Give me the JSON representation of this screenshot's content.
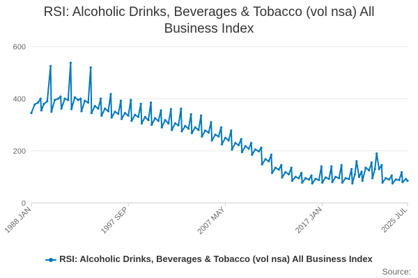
{
  "chart_data": {
    "type": "line",
    "title_lines": [
      "RSI: Alcoholic Drinks, Beverages & Tobacco (vol nsa) All",
      "Business Index"
    ],
    "xlabel": "",
    "ylabel": "",
    "ylim": [
      0,
      600
    ],
    "yticks": [
      0,
      200,
      400,
      600
    ],
    "xlim": [
      "1988-01",
      "2025-07"
    ],
    "xtick_labels": [
      {
        "date": "1988-01",
        "label": "1988 JAN"
      },
      {
        "date": "1997-09",
        "label": "1997 SEP"
      },
      {
        "date": "2007-05",
        "label": "2007 MAY"
      },
      {
        "date": "2017-01",
        "label": "2017 JAN"
      },
      {
        "date": "2025-07",
        "label": "2025 JUL"
      }
    ],
    "grid": "horizontal",
    "legend_position": "bottom",
    "color": "#0077bb",
    "series": [
      {
        "name": "RSI: Alcoholic Drinks, Beverages & Tobacco (vol nsa) All Business Index",
        "points": [
          [
            "1988-01",
            345
          ],
          [
            "1988-05",
            378
          ],
          [
            "1988-09",
            385
          ],
          [
            "1988-12",
            400
          ],
          [
            "1989-01",
            355
          ],
          [
            "1989-04",
            380
          ],
          [
            "1989-08",
            390
          ],
          [
            "1989-12",
            525
          ],
          [
            "1990-01",
            350
          ],
          [
            "1990-05",
            395
          ],
          [
            "1990-09",
            400
          ],
          [
            "1990-12",
            408
          ],
          [
            "1991-01",
            362
          ],
          [
            "1991-05",
            400
          ],
          [
            "1991-09",
            395
          ],
          [
            "1991-12",
            538
          ],
          [
            "1992-01",
            360
          ],
          [
            "1992-05",
            405
          ],
          [
            "1992-09",
            395
          ],
          [
            "1992-12",
            400
          ],
          [
            "1993-01",
            352
          ],
          [
            "1993-05",
            392
          ],
          [
            "1993-09",
            385
          ],
          [
            "1993-12",
            520
          ],
          [
            "1994-01",
            345
          ],
          [
            "1994-05",
            372
          ],
          [
            "1994-09",
            362
          ],
          [
            "1994-12",
            400
          ],
          [
            "1995-01",
            335
          ],
          [
            "1995-05",
            362
          ],
          [
            "1995-09",
            352
          ],
          [
            "1995-12",
            418
          ],
          [
            "1996-01",
            328
          ],
          [
            "1996-05",
            350
          ],
          [
            "1996-09",
            342
          ],
          [
            "1996-12",
            392
          ],
          [
            "1997-01",
            322
          ],
          [
            "1997-05",
            345
          ],
          [
            "1997-09",
            335
          ],
          [
            "1997-12",
            395
          ],
          [
            "1998-01",
            315
          ],
          [
            "1998-05",
            338
          ],
          [
            "1998-09",
            330
          ],
          [
            "1998-12",
            380
          ],
          [
            "1999-01",
            305
          ],
          [
            "1999-05",
            330
          ],
          [
            "1999-09",
            318
          ],
          [
            "1999-12",
            385
          ],
          [
            "2000-01",
            300
          ],
          [
            "2000-05",
            325
          ],
          [
            "2000-09",
            315
          ],
          [
            "2000-12",
            355
          ],
          [
            "2001-01",
            290
          ],
          [
            "2001-05",
            318
          ],
          [
            "2001-09",
            305
          ],
          [
            "2001-12",
            360
          ],
          [
            "2002-01",
            280
          ],
          [
            "2002-05",
            305
          ],
          [
            "2002-09",
            298
          ],
          [
            "2002-12",
            362
          ],
          [
            "2003-01",
            275
          ],
          [
            "2003-05",
            295
          ],
          [
            "2003-09",
            285
          ],
          [
            "2003-12",
            340
          ],
          [
            "2004-01",
            268
          ],
          [
            "2004-05",
            290
          ],
          [
            "2004-09",
            280
          ],
          [
            "2004-12",
            335
          ],
          [
            "2005-01",
            255
          ],
          [
            "2005-05",
            278
          ],
          [
            "2005-09",
            270
          ],
          [
            "2005-12",
            310
          ],
          [
            "2006-01",
            240
          ],
          [
            "2006-05",
            262
          ],
          [
            "2006-09",
            255
          ],
          [
            "2006-12",
            290
          ],
          [
            "2007-01",
            225
          ],
          [
            "2007-05",
            250
          ],
          [
            "2007-09",
            240
          ],
          [
            "2007-12",
            278
          ],
          [
            "2008-01",
            205
          ],
          [
            "2008-05",
            230
          ],
          [
            "2008-09",
            222
          ],
          [
            "2008-12",
            245
          ],
          [
            "2009-01",
            195
          ],
          [
            "2009-05",
            218
          ],
          [
            "2009-09",
            208
          ],
          [
            "2009-12",
            230
          ],
          [
            "2010-01",
            185
          ],
          [
            "2010-05",
            205
          ],
          [
            "2010-09",
            198
          ],
          [
            "2010-12",
            212
          ],
          [
            "2011-01",
            148
          ],
          [
            "2011-05",
            168
          ],
          [
            "2011-09",
            160
          ],
          [
            "2011-12",
            185
          ],
          [
            "2012-01",
            115
          ],
          [
            "2012-05",
            135
          ],
          [
            "2012-09",
            128
          ],
          [
            "2012-12",
            145
          ],
          [
            "2013-01",
            98
          ],
          [
            "2013-05",
            118
          ],
          [
            "2013-09",
            110
          ],
          [
            "2013-12",
            135
          ],
          [
            "2014-01",
            85
          ],
          [
            "2014-05",
            100
          ],
          [
            "2014-09",
            95
          ],
          [
            "2014-12",
            115
          ],
          [
            "2015-01",
            78
          ],
          [
            "2015-05",
            95
          ],
          [
            "2015-09",
            90
          ],
          [
            "2015-12",
            105
          ],
          [
            "2016-01",
            75
          ],
          [
            "2016-05",
            92
          ],
          [
            "2016-09",
            88
          ],
          [
            "2016-12",
            140
          ],
          [
            "2017-01",
            78
          ],
          [
            "2017-05",
            98
          ],
          [
            "2017-09",
            92
          ],
          [
            "2017-12",
            140
          ],
          [
            "2018-01",
            80
          ],
          [
            "2018-05",
            100
          ],
          [
            "2018-09",
            95
          ],
          [
            "2018-12",
            145
          ],
          [
            "2019-01",
            78
          ],
          [
            "2019-05",
            95
          ],
          [
            "2019-09",
            92
          ],
          [
            "2019-12",
            130
          ],
          [
            "2020-01",
            75
          ],
          [
            "2020-04",
            110
          ],
          [
            "2020-06",
            160
          ],
          [
            "2020-09",
            100
          ],
          [
            "2020-12",
            120
          ],
          [
            "2021-01",
            85
          ],
          [
            "2021-05",
            135
          ],
          [
            "2021-09",
            125
          ],
          [
            "2021-12",
            155
          ],
          [
            "2022-01",
            95
          ],
          [
            "2022-04",
            130
          ],
          [
            "2022-06",
            190
          ],
          [
            "2022-09",
            130
          ],
          [
            "2022-12",
            145
          ],
          [
            "2023-01",
            78
          ],
          [
            "2023-05",
            95
          ],
          [
            "2023-09",
            90
          ],
          [
            "2023-12",
            105
          ],
          [
            "2024-01",
            75
          ],
          [
            "2024-05",
            90
          ],
          [
            "2024-09",
            88
          ],
          [
            "2024-12",
            118
          ],
          [
            "2025-01",
            80
          ],
          [
            "2025-05",
            92
          ],
          [
            "2025-07",
            85
          ]
        ]
      }
    ]
  },
  "footer": {
    "source_label": "Source:"
  }
}
